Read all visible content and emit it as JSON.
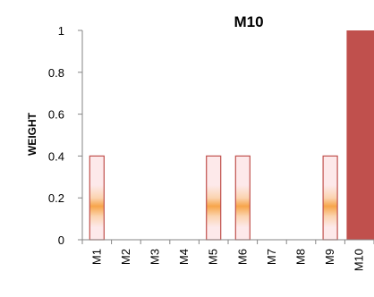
{
  "chart_data": {
    "type": "bar",
    "title": "M10",
    "xlabel": "",
    "ylabel": "WEIGHT",
    "categories": [
      "M1",
      "M2",
      "M3",
      "M4",
      "M5",
      "M6",
      "M7",
      "M8",
      "M9",
      "M10"
    ],
    "values": [
      0.4,
      0,
      0,
      0,
      0.4,
      0.4,
      0,
      0,
      0.4,
      1.0
    ],
    "highlight": "M10",
    "ylim": [
      0,
      1
    ],
    "yticks": [
      "0",
      "0.2",
      "0.4",
      "0.6",
      "0.8",
      "1"
    ],
    "grid": false,
    "colors": {
      "bar_outline": "#c0504d",
      "bar_fill_light": "#fde9ea",
      "bar_fill_glow": "#f7a54a",
      "highlight_fill": "#c0504d",
      "axis": "#868686"
    }
  }
}
